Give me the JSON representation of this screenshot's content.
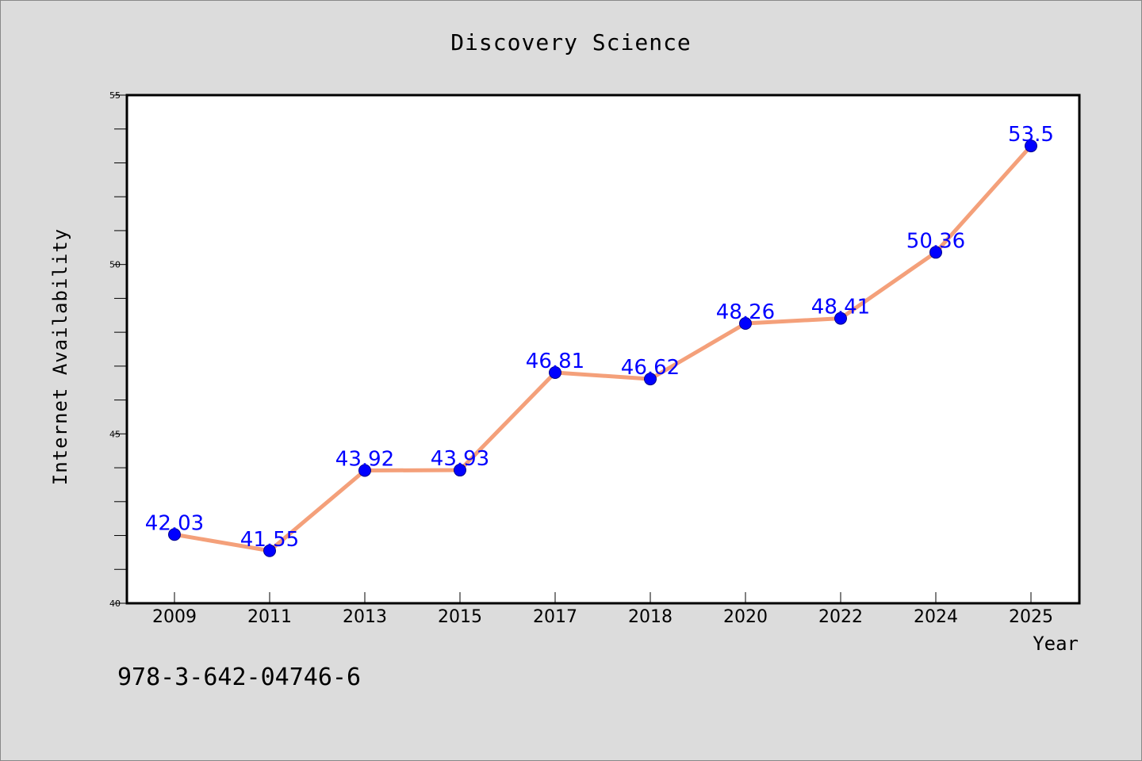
{
  "chart_data": {
    "type": "line",
    "title": "Discovery Science",
    "xlabel": "Year",
    "ylabel": "Internet Availability",
    "categories": [
      "2009",
      "2011",
      "2013",
      "2015",
      "2017",
      "2018",
      "2020",
      "2022",
      "2024",
      "2025"
    ],
    "series": [
      {
        "values": [
          42.03,
          41.55,
          43.92,
          43.93,
          46.81,
          46.62,
          48.26,
          48.41,
          50.36,
          53.5
        ],
        "data_labels": [
          "42.03",
          "41.55",
          "43.92",
          "43.93",
          "46.81",
          "46.62",
          "48.26",
          "48.41",
          "50.36",
          "53.5"
        ],
        "line_color": "#f4a07a",
        "marker_color": "#0000ff"
      }
    ],
    "ylim": [
      40,
      55
    ],
    "yticks": [
      "40",
      "45",
      "50",
      "55"
    ],
    "grid": false,
    "legend": "none"
  },
  "footer": {
    "isbn": "978-3-642-04746-6"
  }
}
